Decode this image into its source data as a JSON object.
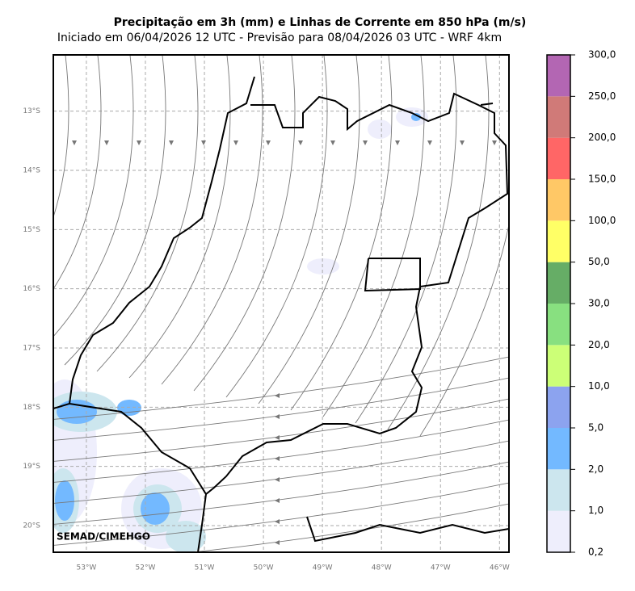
{
  "title": "Precipitação em 3h (mm) e Linhas de Corrente em 850 hPa (m/s)",
  "subtitle": "Iniciado em 06/04/2026 12 UTC - Previsão para 08/04/2026 03 UTC - WRF 4km",
  "credit": "SEMAD/CIMEHGO",
  "map": {
    "xlim": [
      -53.56,
      -45.84
    ],
    "ylim": [
      -20.45,
      -12.05
    ],
    "grid": true,
    "xticks": [
      {
        "value": -53,
        "label": "53°W"
      },
      {
        "value": -52,
        "label": "52°W"
      },
      {
        "value": -51,
        "label": "51°W"
      },
      {
        "value": -50,
        "label": "50°W"
      },
      {
        "value": -49,
        "label": "49°W"
      },
      {
        "value": -48,
        "label": "48°W"
      },
      {
        "value": -47,
        "label": "47°W"
      },
      {
        "value": -46,
        "label": "46°W"
      }
    ],
    "yticks": [
      {
        "value": -13,
        "label": "13°S"
      },
      {
        "value": -14,
        "label": "14°S"
      },
      {
        "value": -15,
        "label": "15°S"
      },
      {
        "value": -16,
        "label": "16°S"
      },
      {
        "value": -17,
        "label": "17°S"
      },
      {
        "value": -18,
        "label": "18°S"
      },
      {
        "value": -19,
        "label": "19°S"
      },
      {
        "value": -20,
        "label": "20°S"
      }
    ]
  },
  "colorbar": {
    "ticks": [
      {
        "value": 0.2,
        "label": "0,2"
      },
      {
        "value": 1,
        "label": "1,0"
      },
      {
        "value": 2,
        "label": "2,0"
      },
      {
        "value": 5,
        "label": "5,0"
      },
      {
        "value": 10,
        "label": "10,0"
      },
      {
        "value": 20,
        "label": "20,0"
      },
      {
        "value": 30,
        "label": "30,0"
      },
      {
        "value": 50,
        "label": "50,0"
      },
      {
        "value": 100,
        "label": "100,0"
      },
      {
        "value": 150,
        "label": "150,0"
      },
      {
        "value": 200,
        "label": "200,0"
      },
      {
        "value": 250,
        "label": "250,0"
      },
      {
        "value": 300,
        "label": "300,0"
      }
    ],
    "colors": [
      "#eeeefc",
      "#cce6ee",
      "#73b9ff",
      "#8ca3ef",
      "#ccff77",
      "#88e080",
      "#66ad66",
      "#ffff66",
      "#ffc866",
      "#ff6666",
      "#d07a78",
      "#b366b3"
    ]
  }
}
